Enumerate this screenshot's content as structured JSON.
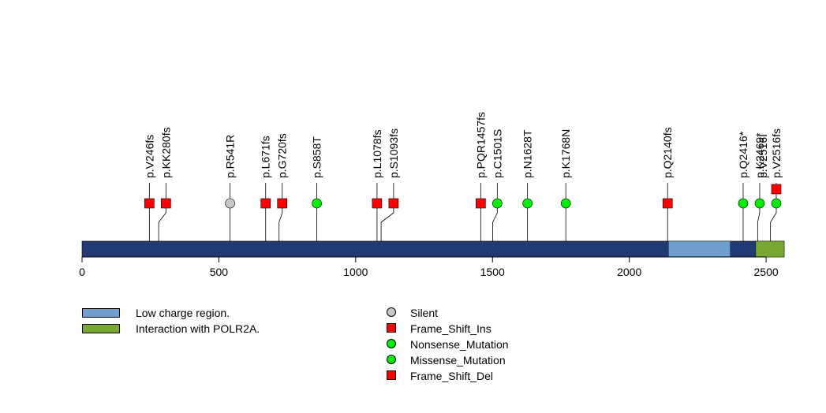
{
  "chart_data": {
    "type": "lollipop",
    "xlim": [
      0,
      2566
    ],
    "ticks": [
      0,
      500,
      1000,
      1500,
      2000,
      2500
    ],
    "protein_color": "#223a74",
    "domains": [
      {
        "name": "Low charge region.",
        "start": 2143,
        "end": 2369,
        "color": "#6e9fcf"
      },
      {
        "name": "Interaction with POLR2A.",
        "start": 2462,
        "end": 2566,
        "color": "#78a832"
      }
    ],
    "mutations": [
      {
        "label": "p.V246fs",
        "pos": 246,
        "type": "Frame_Shift_Ins",
        "stack": 1
      },
      {
        "label": "p.KK280fs",
        "pos": 280,
        "type": "Frame_Shift_Ins",
        "stack": 1
      },
      {
        "label": "p.R541R",
        "pos": 541,
        "type": "Silent",
        "stack": 1
      },
      {
        "label": "p.L671fs",
        "pos": 671,
        "type": "Frame_Shift_Ins",
        "stack": 1
      },
      {
        "label": "p.G720fs",
        "pos": 720,
        "type": "Frame_Shift_Ins",
        "stack": 1
      },
      {
        "label": "p.S858T",
        "pos": 858,
        "type": "Missense_Mutation",
        "stack": 1
      },
      {
        "label": "p.L1078fs",
        "pos": 1078,
        "type": "Frame_Shift_Ins",
        "stack": 1
      },
      {
        "label": "p.S1093fs",
        "pos": 1093,
        "type": "Frame_Shift_Ins",
        "stack": 1
      },
      {
        "label": "p.PQR1457fs",
        "pos": 1457,
        "type": "Frame_Shift_Ins",
        "stack": 1
      },
      {
        "label": "p.C1501S",
        "pos": 1501,
        "type": "Missense_Mutation",
        "stack": 1
      },
      {
        "label": "p.N1628T",
        "pos": 1628,
        "type": "Missense_Mutation",
        "stack": 1
      },
      {
        "label": "p.K1768N",
        "pos": 1768,
        "type": "Missense_Mutation",
        "stack": 1
      },
      {
        "label": "p.Q2140fs",
        "pos": 2140,
        "type": "Frame_Shift_Ins",
        "stack": 1
      },
      {
        "label": "p.Q2416*",
        "pos": 2416,
        "type": "Nonsense_Mutation",
        "stack": 1
      },
      {
        "label": "p.K2469*",
        "pos": 2469,
        "type": "Nonsense_Mutation",
        "stack": 1
      },
      {
        "label": "p.V2516I",
        "pos": 2516,
        "type": "Missense_Mutation",
        "stack": 1
      },
      {
        "label": "p.V2516fs",
        "pos": 2516,
        "type": "Frame_Shift_Ins",
        "stack": 2
      }
    ],
    "mutation_styles": {
      "Silent": {
        "shape": "circle",
        "color": "#c8c8c8"
      },
      "Frame_Shift_Ins": {
        "shape": "square",
        "color": "#ff0000"
      },
      "Nonsense_Mutation": {
        "shape": "circle",
        "color": "#00ee00"
      },
      "Missense_Mutation": {
        "shape": "circle",
        "color": "#00ee00"
      },
      "Frame_Shift_Del": {
        "shape": "square",
        "color": "#ff0000"
      }
    },
    "legend_domains": [
      {
        "label": "Low charge region.",
        "color": "#6e9fcf"
      },
      {
        "label": "Interaction with POLR2A.",
        "color": "#78a832"
      }
    ],
    "legend_mutations": [
      {
        "label": "Silent",
        "shape": "circle",
        "color": "#c8c8c8"
      },
      {
        "label": "Frame_Shift_Ins",
        "shape": "square",
        "color": "#ff0000"
      },
      {
        "label": "Nonsense_Mutation",
        "shape": "circle",
        "color": "#00ee00"
      },
      {
        "label": "Missense_Mutation",
        "shape": "circle",
        "color": "#00ee00"
      },
      {
        "label": "Frame_Shift_Del",
        "shape": "square",
        "color": "#ff0000"
      }
    ]
  }
}
